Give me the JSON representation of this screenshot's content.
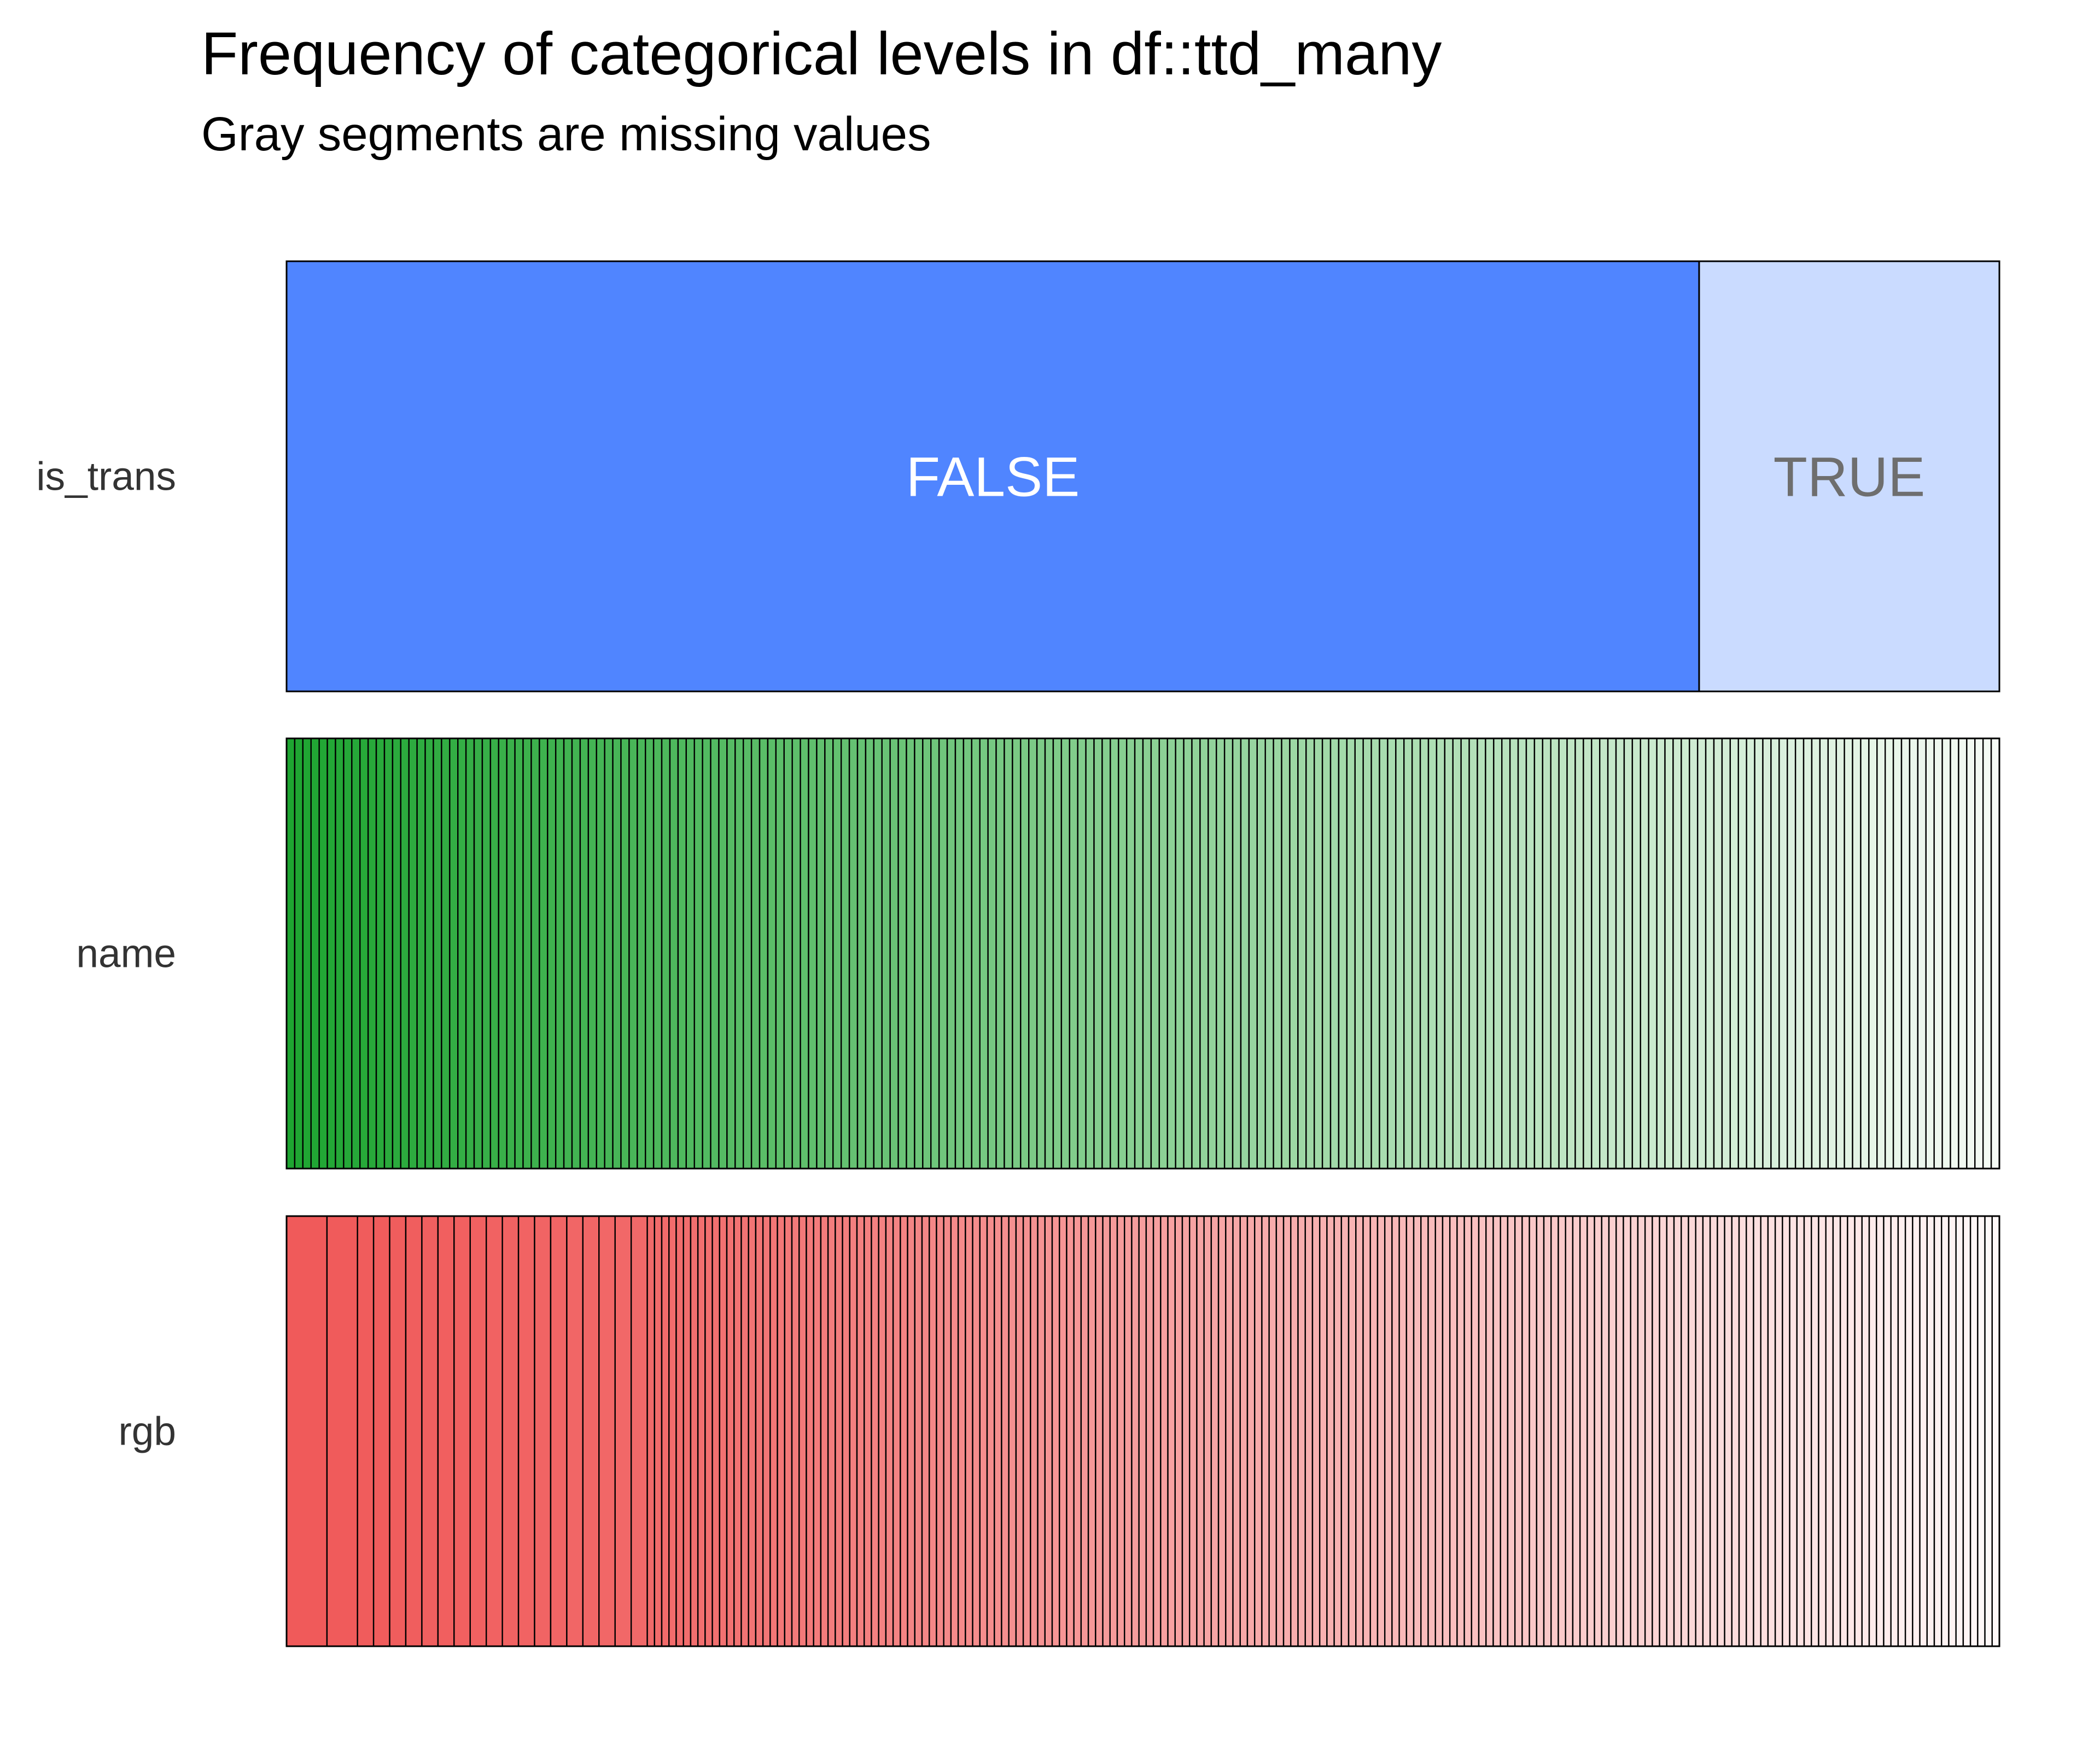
{
  "chart_data": {
    "type": "bar",
    "orientation": "horizontal-stacked-proportion",
    "title": "Frequency of categorical levels in df::ttd_many",
    "subtitle": "Gray segments are missing values",
    "rows": [
      {
        "name": "is_trans",
        "colors": [
          "#5085FF",
          "#CADBFF"
        ],
        "label_colors": [
          "#FFFFFF",
          "#6E6E6E"
        ],
        "segments": [
          {
            "label": "FALSE",
            "prop": 0.8247,
            "show_label": true
          },
          {
            "label": "TRUE",
            "prop": 0.1753,
            "show_label": true
          }
        ]
      },
      {
        "name": "name",
        "colors": [
          "#1EA531",
          "#F5FBF5"
        ],
        "uniform_segments": 210
      },
      {
        "name": "rgb",
        "colors": [
          "#F05A5A",
          "#FFF8F8"
        ],
        "front_props": [
          0.0236,
          0.0178,
          0.0094,
          0.0094,
          0.0094,
          0.0094,
          0.0094,
          0.0094,
          0.0094,
          0.0094,
          0.0094,
          0.0094,
          0.0094,
          0.0094,
          0.0094,
          0.0094,
          0.0094,
          0.0094,
          0.0094,
          0.0094
        ],
        "tail_segments": 187
      }
    ],
    "grid": false,
    "legend": "none"
  }
}
